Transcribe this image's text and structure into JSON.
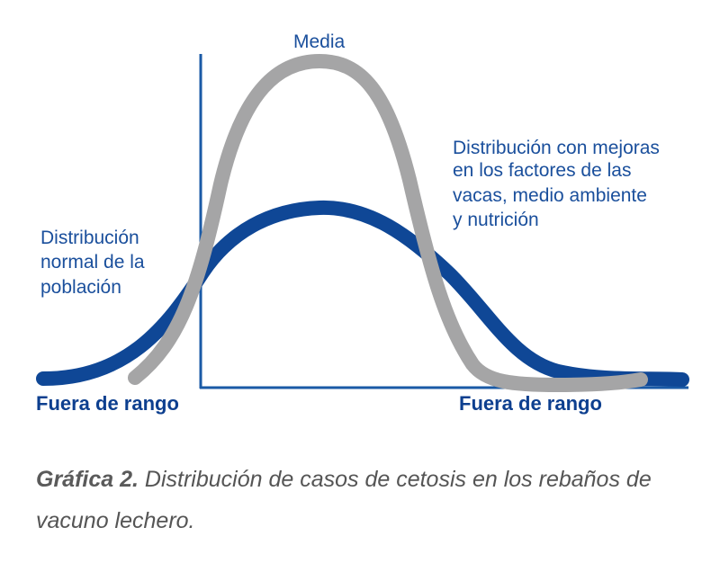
{
  "labels": {
    "media": "Media",
    "improved": [
      "Distribución con mejoras",
      "en los factores de las",
      "vacas, medio ambiente",
      "y nutrición"
    ],
    "normal": [
      "Distribución",
      "normal de la",
      "población"
    ],
    "out_of_range_left": "Fuera de rango",
    "out_of_range_right": "Fuera de rango"
  },
  "caption": {
    "label": "Gráfica 2.",
    "text": " Distribución de casos de cetosis en los rebaños de vacuno lechero."
  },
  "colors": {
    "normal_curve": "#0f4796",
    "improved_curve": "#a5a5a6",
    "axis": "#1a5aa6",
    "text": "#1a4f9c",
    "caption": "#555555"
  }
}
